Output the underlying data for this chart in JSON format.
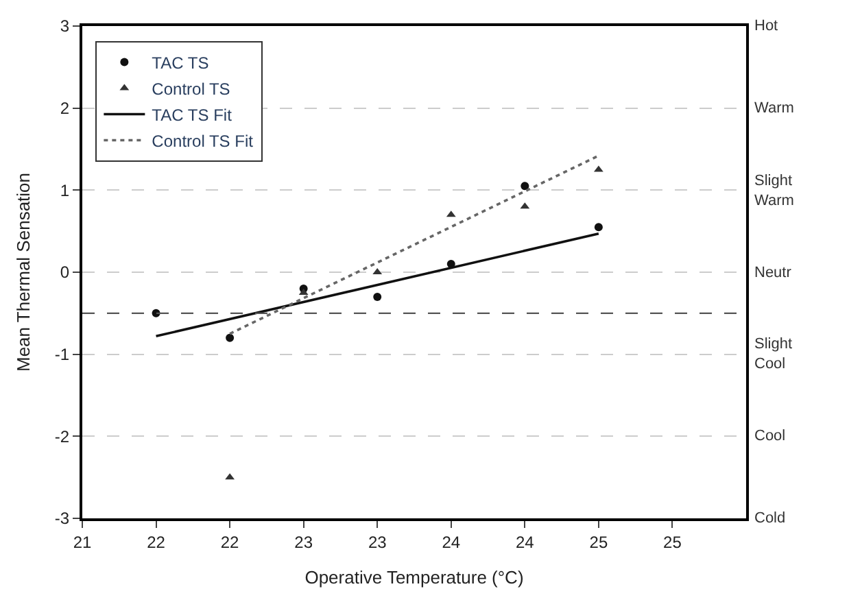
{
  "chart_data": {
    "type": "scatter",
    "xlabel": "Operative Temperature (°C)",
    "ylabel": "Mean Thermal Sensation",
    "xlim": [
      21,
      25.5
    ],
    "xticks": [
      {
        "value": 21,
        "label": "21"
      },
      {
        "value": 21.5,
        "label": "22"
      },
      {
        "value": 22,
        "label": "22"
      },
      {
        "value": 22.5,
        "label": "23"
      },
      {
        "value": 23,
        "label": "23"
      },
      {
        "value": 23.5,
        "label": "24"
      },
      {
        "value": 24,
        "label": "24"
      },
      {
        "value": 24.5,
        "label": "25"
      },
      {
        "value": 25,
        "label": "25"
      }
    ],
    "ylim": [
      -3,
      3
    ],
    "yticks": [
      -3,
      -2,
      -1,
      0,
      1,
      2,
      3
    ],
    "annotations": [
      "Hot",
      "Warm",
      "Slight\nWarm",
      "Neutr",
      "Slight\nCool",
      "Cool",
      "Cold"
    ],
    "grid": "y",
    "legend": "top left",
    "ref_lines": [
      {
        "axis": "y",
        "value": -0.5,
        "color": "#555555",
        "line_style": "dashed"
      }
    ],
    "series": [
      {
        "name": "TAC TS",
        "marker": "circle",
        "color": "#111111",
        "x": [
          21.5,
          22,
          22.5,
          23,
          23.5,
          24,
          24.5
        ],
        "values": [
          -0.5,
          -0.8,
          -0.2,
          -0.3,
          0.1,
          1.05,
          0.55
        ]
      },
      {
        "name": "Control TS",
        "marker": "triangle",
        "color": "#333333",
        "x": [
          22,
          22.5,
          23,
          23.5,
          24,
          24.5
        ],
        "values": [
          -2.5,
          -0.25,
          0,
          0.7,
          0.8,
          1.25
        ]
      },
      {
        "name": "TAC TS Fit",
        "type": "line",
        "line_style": "solid",
        "color": "#111111",
        "x": [
          21.5,
          24.5
        ],
        "values": [
          -0.78,
          0.47
        ]
      },
      {
        "name": "Control TS Fit",
        "type": "line",
        "line_style": "dotted",
        "color": "#666666",
        "x": [
          22,
          24.5
        ],
        "values": [
          -0.75,
          1.42
        ]
      }
    ]
  }
}
